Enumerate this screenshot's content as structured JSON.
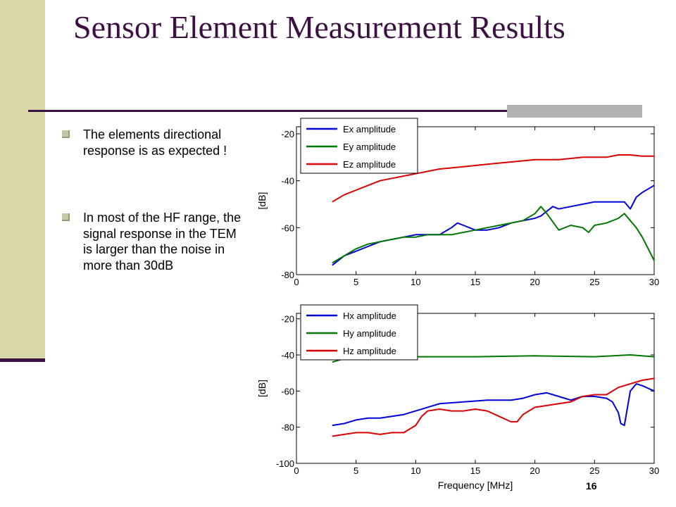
{
  "title": "Sensor Element Measurement Results",
  "bullets": [
    "The elements directional response is as expected !",
    "In most of the HF range, the signal response in the TEM is larger than the noise in more than 30dB"
  ],
  "page_number": "16",
  "colors": {
    "title": "#3c1042",
    "side_band": "#d7d7a8",
    "blue": "#0000dd",
    "green": "#007700",
    "red": "#dd0000"
  },
  "chart_data": [
    {
      "type": "line",
      "xlabel": "",
      "ylabel": "[dB]",
      "xlim": [
        0,
        30
      ],
      "ylim": [
        -80,
        -17
      ],
      "xticks": [
        0,
        5,
        10,
        15,
        20,
        25,
        30
      ],
      "yticks": [
        -80,
        -60,
        -40,
        -20
      ],
      "legend": "top-left",
      "series": [
        {
          "name": "Ex amplitude",
          "color": "#0000dd",
          "x": [
            3,
            4,
            5,
            6,
            7,
            8,
            9,
            10,
            11,
            12,
            13,
            13.5,
            14,
            15,
            16,
            17,
            18,
            19,
            20,
            20.5,
            21,
            21.5,
            22,
            23,
            24,
            25,
            26,
            27,
            27.5,
            28,
            28.5,
            29,
            30
          ],
          "y": [
            -76,
            -72,
            -70,
            -68,
            -66,
            -65,
            -64,
            -63,
            -63,
            -63,
            -60,
            -58,
            -59,
            -61,
            -61,
            -60,
            -58,
            -57,
            -56,
            -55,
            -53,
            -51,
            -52,
            -51,
            -50,
            -49,
            -49,
            -49,
            -49,
            -52,
            -47,
            -45,
            -42
          ]
        },
        {
          "name": "Ey amplitude",
          "color": "#007700",
          "x": [
            3,
            4,
            5,
            6,
            7,
            8,
            9,
            10,
            11,
            12,
            13,
            14,
            15,
            16,
            17,
            18,
            19,
            20,
            20.5,
            21,
            22,
            23,
            24,
            24.5,
            25,
            26,
            27,
            27.5,
            28,
            28.5,
            29,
            30
          ],
          "y": [
            -75,
            -72,
            -69,
            -67,
            -66,
            -65,
            -64,
            -64,
            -63,
            -63,
            -63,
            -62,
            -61,
            -60,
            -59,
            -58,
            -57,
            -54,
            -51,
            -54,
            -61,
            -59,
            -60,
            -62,
            -59,
            -58,
            -56,
            -54,
            -57,
            -60,
            -64,
            -74
          ]
        },
        {
          "name": "Ez amplitude",
          "color": "#dd0000",
          "x": [
            3,
            4,
            5,
            6,
            7,
            8,
            9,
            10,
            12,
            14,
            16,
            18,
            20,
            22,
            24,
            26,
            27,
            28,
            29,
            30
          ],
          "y": [
            -49,
            -46,
            -44,
            -42,
            -40,
            -39,
            -38,
            -37,
            -35,
            -34,
            -33,
            -32,
            -31,
            -31,
            -30,
            -30,
            -29,
            -29,
            -29.5,
            -29.5
          ]
        }
      ]
    },
    {
      "type": "line",
      "xlabel": "Frequency [MHz]",
      "ylabel": "[dB]",
      "xlim": [
        0,
        30
      ],
      "ylim": [
        -100,
        -17
      ],
      "xticks": [
        0,
        5,
        10,
        15,
        20,
        25,
        30
      ],
      "yticks": [
        -100,
        -80,
        -60,
        -40,
        -20
      ],
      "legend": "top-left",
      "series": [
        {
          "name": "Hx amplitude",
          "color": "#0000dd",
          "x": [
            3,
            4,
            5,
            6,
            7,
            8,
            9,
            9.5,
            10,
            11,
            12,
            14,
            16,
            18,
            19,
            20,
            21,
            22,
            23,
            24,
            25,
            26,
            26.5,
            27,
            27.2,
            27.5,
            28,
            28.5,
            29,
            30
          ],
          "y": [
            -79,
            -78,
            -76,
            -75,
            -75,
            -74,
            -73,
            -72,
            -71,
            -69,
            -67,
            -66,
            -65,
            -65,
            -64,
            -62,
            -61,
            -63,
            -65,
            -63,
            -63,
            -64,
            -66,
            -72,
            -78,
            -79,
            -60,
            -56,
            -57,
            -60
          ]
        },
        {
          "name": "Hy amplitude",
          "color": "#007700",
          "x": [
            3,
            4,
            5,
            6,
            8,
            10,
            15,
            20,
            25,
            28,
            30
          ],
          "y": [
            -44,
            -42,
            -42,
            -41.5,
            -41,
            -41,
            -41,
            -40.5,
            -41,
            -40,
            -41
          ]
        },
        {
          "name": "Hz amplitude",
          "color": "#dd0000",
          "x": [
            3,
            4,
            5,
            6,
            7,
            8,
            9,
            10,
            10.5,
            11,
            12,
            13,
            14,
            15,
            16,
            17,
            18,
            18.5,
            19,
            20,
            21,
            22,
            23,
            24,
            25,
            26,
            27,
            28,
            29,
            30
          ],
          "y": [
            -85,
            -84,
            -83,
            -83,
            -84,
            -83,
            -83,
            -79,
            -74,
            -71,
            -70,
            -71,
            -71,
            -70,
            -71,
            -74,
            -77,
            -77,
            -73,
            -69,
            -68,
            -67,
            -66,
            -63,
            -62,
            -62,
            -58,
            -56,
            -54,
            -53
          ]
        }
      ]
    }
  ]
}
